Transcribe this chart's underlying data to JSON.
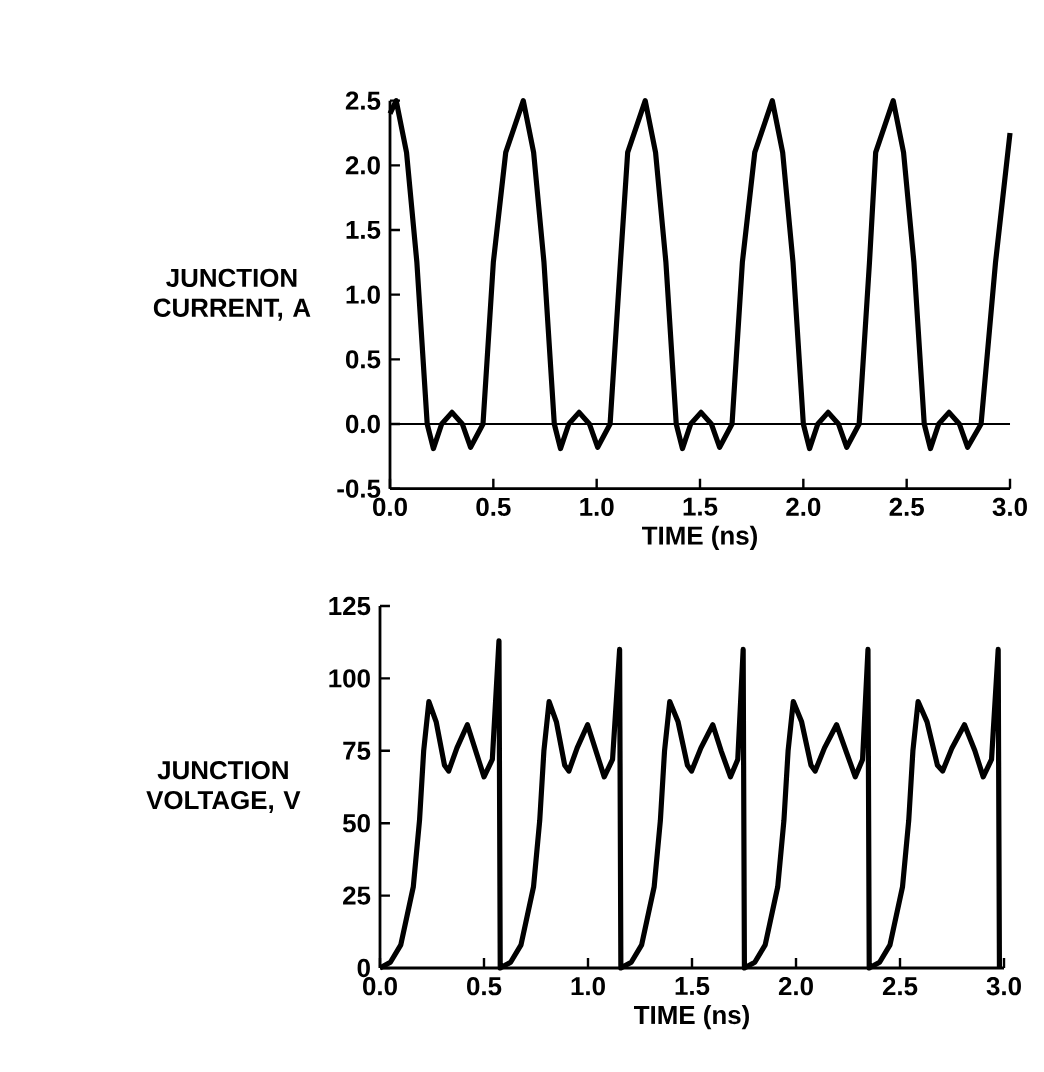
{
  "chart_data": [
    {
      "type": "line",
      "xlabel": "TIME (ns)",
      "ylabel": "JUNCTION CURRENT, A",
      "series": [
        {
          "color": "#000000",
          "x": [
            0.0,
            0.03,
            0.08,
            0.13,
            0.18,
            0.21,
            0.25,
            0.3,
            0.35,
            0.39,
            0.45,
            0.5,
            0.56,
            0.645,
            0.695,
            0.745,
            0.795,
            0.825,
            0.865,
            0.915,
            0.965,
            1.005,
            1.065,
            1.115,
            1.15,
            1.235,
            1.285,
            1.335,
            1.385,
            1.415,
            1.455,
            1.505,
            1.555,
            1.595,
            1.655,
            1.705,
            1.765,
            1.85,
            1.9,
            1.95,
            2.0,
            2.03,
            2.07,
            2.12,
            2.17,
            2.21,
            2.27,
            2.32,
            2.35,
            2.435,
            2.485,
            2.535,
            2.585,
            2.615,
            2.655,
            2.705,
            2.755,
            2.795,
            2.86,
            2.93,
            3.0
          ],
          "values": [
            2.4,
            2.5,
            2.1,
            1.25,
            0.0,
            -0.19,
            0.0,
            0.09,
            0.0,
            -0.18,
            0.0,
            1.25,
            2.1,
            2.5,
            2.1,
            1.25,
            0.0,
            -0.19,
            0.0,
            0.09,
            0.0,
            -0.18,
            0.0,
            1.25,
            2.1,
            2.5,
            2.1,
            1.25,
            0.0,
            -0.19,
            0.0,
            0.09,
            0.0,
            -0.18,
            0.0,
            1.25,
            2.1,
            2.5,
            2.1,
            1.25,
            0.0,
            -0.19,
            0.0,
            0.09,
            0.0,
            -0.18,
            0.0,
            1.25,
            2.1,
            2.5,
            2.1,
            1.25,
            0.0,
            -0.19,
            0.0,
            0.09,
            0.0,
            -0.18,
            0.0,
            1.25,
            2.25
          ]
        }
      ],
      "xlim": [
        0,
        3.0
      ],
      "ylim": [
        -0.5,
        2.5
      ],
      "xticks": [
        {
          "value": 0,
          "label": "0.0"
        },
        0.5,
        {
          "value": 1,
          "label": "1.0"
        },
        1.5,
        {
          "value": 2,
          "label": "2.0"
        },
        2.5,
        {
          "value": 3,
          "label": "3.0"
        }
      ],
      "yticks": [
        -0.5,
        {
          "value": 0,
          "label": "0.0"
        },
        0.5,
        {
          "value": 1,
          "label": "1.0"
        },
        1.5,
        {
          "value": 2,
          "label": "2.0"
        },
        2.5
      ],
      "ref_lines": [
        {
          "axis": "y",
          "value": 0,
          "color": "#000000"
        }
      ]
    },
    {
      "type": "line",
      "xlabel": "TIME (ns)",
      "ylabel": "JUNCTION VOLTAGE, V",
      "series": [
        {
          "color": "#000000",
          "x": [
            0.0,
            0.05,
            0.1,
            0.16,
            0.19,
            0.21,
            0.235,
            0.27,
            0.31,
            0.33,
            0.37,
            0.42,
            0.46,
            0.5,
            0.54,
            0.572,
            0.578,
            0.628,
            0.678,
            0.738,
            0.768,
            0.788,
            0.813,
            0.848,
            0.888,
            0.908,
            0.948,
            0.998,
            1.038,
            1.078,
            1.118,
            1.152,
            1.158,
            1.208,
            1.258,
            1.318,
            1.348,
            1.368,
            1.393,
            1.433,
            1.478,
            1.498,
            1.543,
            1.6,
            1.64,
            1.685,
            1.72,
            1.746,
            1.752,
            1.802,
            1.852,
            1.912,
            1.942,
            1.962,
            1.987,
            2.027,
            2.072,
            2.092,
            2.137,
            2.195,
            2.24,
            2.285,
            2.32,
            2.346,
            2.352,
            2.402,
            2.452,
            2.512,
            2.542,
            2.562,
            2.587,
            2.63,
            2.68,
            2.705,
            2.75,
            2.81,
            2.86,
            2.9,
            2.94,
            2.972,
            2.978
          ],
          "values": [
            0,
            2,
            8,
            28,
            51,
            75,
            92,
            85,
            70,
            68,
            76,
            84,
            75,
            66,
            72,
            113,
            0,
            2,
            8,
            28,
            51,
            75,
            92,
            85,
            70,
            68,
            76,
            84,
            75,
            66,
            72,
            110,
            0,
            2,
            8,
            28,
            51,
            75,
            92,
            85,
            70,
            68,
            76,
            84,
            75,
            66,
            72,
            110,
            0,
            2,
            8,
            28,
            51,
            75,
            92,
            85,
            70,
            68,
            76,
            84,
            75,
            66,
            72,
            110,
            0,
            2,
            8,
            28,
            51,
            75,
            92,
            85,
            70,
            68,
            76,
            84,
            75,
            66,
            72,
            110,
            0
          ]
        }
      ],
      "xlim": [
        0,
        3.0
      ],
      "ylim": [
        0,
        125
      ],
      "xticks": [
        {
          "value": 0,
          "label": "0.0"
        },
        0.5,
        {
          "value": 1,
          "label": "1.0"
        },
        1.5,
        {
          "value": 2,
          "label": "2.0"
        },
        2.5,
        {
          "value": 3,
          "label": "3.0"
        }
      ],
      "yticks": [
        0,
        25,
        50,
        75,
        100,
        125
      ]
    }
  ]
}
